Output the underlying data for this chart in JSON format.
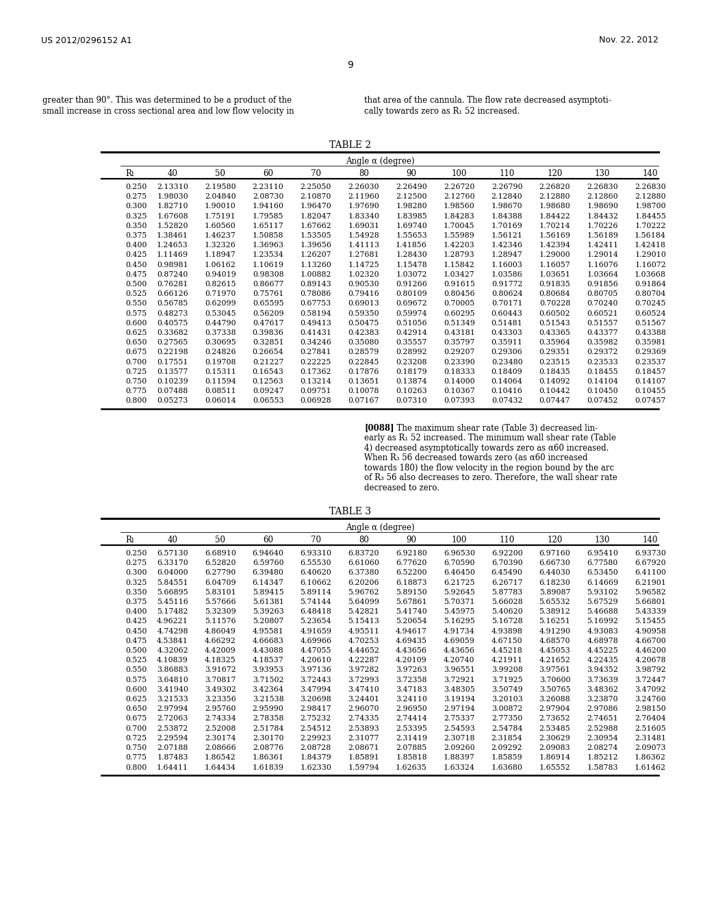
{
  "header_left": "US 2012/0296152 A1",
  "header_right": "Nov. 22, 2012",
  "page_num": "9",
  "text_left": "greater than 90°. This was determined to be a product of the\nsmall increase in cross sectional area and low flow velocity in",
  "text_right": "that area of the cannula. The flow rate decreased asymptoti-\ncally towards zero as R₁ 52 increased.",
  "table2_title": "TABLE 2",
  "table2_header_row": [
    "R₁",
    "40",
    "50",
    "60",
    "70",
    "80",
    "90",
    "100",
    "110",
    "120",
    "130",
    "140"
  ],
  "table2_angle_label": "Angle α (degree)",
  "table2_data": [
    [
      "0.250",
      "2.13310",
      "2.19580",
      "2.23110",
      "2.25050",
      "2.26030",
      "2.26490",
      "2.26720",
      "2.26790",
      "2.26820",
      "2.26830",
      "2.26830"
    ],
    [
      "0.275",
      "1.98030",
      "2.04840",
      "2.08730",
      "2.10870",
      "2.11960",
      "2.12500",
      "2.12760",
      "2.12840",
      "2.12880",
      "2.12860",
      "2.12880"
    ],
    [
      "0.300",
      "1.82710",
      "1.90010",
      "1.94160",
      "1.96470",
      "1.97690",
      "1.98280",
      "1.98560",
      "1.98670",
      "1.98680",
      "1.98690",
      "1.98700"
    ],
    [
      "0.325",
      "1.67608",
      "1.75191",
      "1.79585",
      "1.82047",
      "1.83340",
      "1.83985",
      "1.84283",
      "1.84388",
      "1.84422",
      "1.84432",
      "1.84455"
    ],
    [
      "0.350",
      "1.52820",
      "1.60560",
      "1.65117",
      "1.67662",
      "1.69031",
      "1.69740",
      "1.70045",
      "1.70169",
      "1.70214",
      "1.70226",
      "1.70222"
    ],
    [
      "0.375",
      "1.38461",
      "1.46237",
      "1.50858",
      "1.53505",
      "1.54928",
      "1.55653",
      "1.55989",
      "1.56121",
      "1.56169",
      "1.56189",
      "1.56184"
    ],
    [
      "0.400",
      "1.24653",
      "1.32326",
      "1.36963",
      "1.39656",
      "1.41113",
      "1.41856",
      "1.42203",
      "1.42346",
      "1.42394",
      "1.42411",
      "1.42418"
    ],
    [
      "0.425",
      "1.11469",
      "1.18947",
      "1.23534",
      "1.26207",
      "1.27681",
      "1.28430",
      "1.28793",
      "1.28947",
      "1.29000",
      "1.29014",
      "1.29010"
    ],
    [
      "0.450",
      "0.98981",
      "1.06162",
      "1.10619",
      "1.13260",
      "1.14725",
      "1.15478",
      "1.15842",
      "1.16003",
      "1.16057",
      "1.16076",
      "1.16072"
    ],
    [
      "0.475",
      "0.87240",
      "0.94019",
      "0.98308",
      "1.00882",
      "1.02320",
      "1.03072",
      "1.03427",
      "1.03586",
      "1.03651",
      "1.03664",
      "1.03668"
    ],
    [
      "0.500",
      "0.76281",
      "0.82615",
      "0.86677",
      "0.89143",
      "0.90530",
      "0.91266",
      "0.91615",
      "0.91772",
      "0.91835",
      "0.91856",
      "0.91864"
    ],
    [
      "0.525",
      "0.66126",
      "0.71970",
      "0.75761",
      "0.78086",
      "0.79416",
      "0.80109",
      "0.80456",
      "0.80624",
      "0.80684",
      "0.80705",
      "0.80704"
    ],
    [
      "0.550",
      "0.56785",
      "0.62099",
      "0.65595",
      "0.67753",
      "0.69013",
      "0.69672",
      "0.70005",
      "0.70171",
      "0.70228",
      "0.70240",
      "0.70245"
    ],
    [
      "0.575",
      "0.48273",
      "0.53045",
      "0.56209",
      "0.58194",
      "0.59350",
      "0.59974",
      "0.60295",
      "0.60443",
      "0.60502",
      "0.60521",
      "0.60524"
    ],
    [
      "0.600",
      "0.40575",
      "0.44790",
      "0.47617",
      "0.49413",
      "0.50475",
      "0.51056",
      "0.51349",
      "0.51481",
      "0.51543",
      "0.51557",
      "0.51567"
    ],
    [
      "0.625",
      "0.33682",
      "0.37338",
      "0.39836",
      "0.41431",
      "0.42383",
      "0.42914",
      "0.43181",
      "0.43303",
      "0.43365",
      "0.43377",
      "0.43388"
    ],
    [
      "0.650",
      "0.27565",
      "0.30695",
      "0.32851",
      "0.34246",
      "0.35080",
      "0.35557",
      "0.35797",
      "0.35911",
      "0.35964",
      "0.35982",
      "0.35981"
    ],
    [
      "0.675",
      "0.22198",
      "0.24826",
      "0.26654",
      "0.27841",
      "0.28579",
      "0.28992",
      "0.29207",
      "0.29306",
      "0.29351",
      "0.29372",
      "0.29369"
    ],
    [
      "0.700",
      "0.17551",
      "0.19708",
      "0.21227",
      "0.22225",
      "0.22845",
      "0.23208",
      "0.23390",
      "0.23480",
      "0.23515",
      "0.23533",
      "0.23537"
    ],
    [
      "0.725",
      "0.13577",
      "0.15311",
      "0.16543",
      "0.17362",
      "0.17876",
      "0.18179",
      "0.18333",
      "0.18409",
      "0.18435",
      "0.18455",
      "0.18457"
    ],
    [
      "0.750",
      "0.10239",
      "0.11594",
      "0.12563",
      "0.13214",
      "0.13651",
      "0.13874",
      "0.14000",
      "0.14064",
      "0.14092",
      "0.14104",
      "0.14107"
    ],
    [
      "0.775",
      "0.07488",
      "0.08511",
      "0.09247",
      "0.09751",
      "0.10078",
      "0.10263",
      "0.10367",
      "0.10416",
      "0.10442",
      "0.10450",
      "0.10455"
    ],
    [
      "0.800",
      "0.05273",
      "0.06014",
      "0.06553",
      "0.06928",
      "0.07167",
      "0.07310",
      "0.07393",
      "0.07432",
      "0.07447",
      "0.07452",
      "0.07457"
    ]
  ],
  "para0088": "[0088]   The maximum shear rate (Table 3) decreased lin-\nearly as R₁ 52 increased. The minimum wall shear rate (Table\n4) decreased asymptotically towards zero as α60 increased.\nWhen R₃ 56 decreased towards zero (as α60 increased\ntowards 180) the flow velocity in the region bound by the arc\nof R₃ 56 also decreases to zero. Therefore, the wall shear rate\ndecreased to zero.",
  "table3_title": "TABLE 3",
  "table3_angle_label": "Angle α (degree)",
  "table3_header_row": [
    "R₁",
    "40",
    "50",
    "60",
    "70",
    "80",
    "90",
    "100",
    "110",
    "120",
    "130",
    "140"
  ],
  "table3_data": [
    [
      "0.250",
      "6.57130",
      "6.68910",
      "6.94640",
      "6.93310",
      "6.83720",
      "6.92180",
      "6.96530",
      "6.92200",
      "6.97160",
      "6.95410",
      "6.93730"
    ],
    [
      "0.275",
      "6.33170",
      "6.52820",
      "6.59760",
      "6.55530",
      "6.61060",
      "6.77620",
      "6.70590",
      "6.70390",
      "6.66730",
      "6.77580",
      "6.67920"
    ],
    [
      "0.300",
      "6.04000",
      "6.27790",
      "6.39480",
      "6.40620",
      "6.37380",
      "6.52200",
      "6.46450",
      "6.45490",
      "6.44030",
      "6.53450",
      "6.41100"
    ],
    [
      "0.325",
      "5.84551",
      "6.04709",
      "6.14347",
      "6.10662",
      "6.20206",
      "6.18873",
      "6.21725",
      "6.26717",
      "6.18230",
      "6.14669",
      "6.21901"
    ],
    [
      "0.350",
      "5.66895",
      "5.83101",
      "5.89415",
      "5.89114",
      "5.96762",
      "5.89150",
      "5.92645",
      "5.87783",
      "5.89087",
      "5.93102",
      "5.96582"
    ],
    [
      "0.375",
      "5.45116",
      "5.57666",
      "5.61381",
      "5.74144",
      "5.64099",
      "5.67861",
      "5.70371",
      "5.66028",
      "5.65532",
      "5.67529",
      "5.66801"
    ],
    [
      "0.400",
      "5.17482",
      "5.32309",
      "5.39263",
      "6.48418",
      "5.42821",
      "5.41740",
      "5.45975",
      "5.40620",
      "5.38912",
      "5.46688",
      "5.43339"
    ],
    [
      "0.425",
      "4.96221",
      "5.11576",
      "5.20807",
      "5.23654",
      "5.15413",
      "5.20654",
      "5.16295",
      "5.16728",
      "5.16251",
      "5.16992",
      "5.15455"
    ],
    [
      "0.450",
      "4.74298",
      "4.86049",
      "4.95581",
      "4.91659",
      "4.95511",
      "4.94617",
      "4.91734",
      "4.93898",
      "4.91290",
      "4.93083",
      "4.90958"
    ],
    [
      "0.475",
      "4.53841",
      "4.66292",
      "4.66683",
      "4.69966",
      "4.70253",
      "4.69435",
      "4.69059",
      "4.67150",
      "4.68570",
      "4.68978",
      "4.66700"
    ],
    [
      "0.500",
      "4.32062",
      "4.42009",
      "4.43088",
      "4.47055",
      "4.44652",
      "4.43656",
      "4.43656",
      "4.45218",
      "4.45053",
      "4.45225",
      "4.46200"
    ],
    [
      "0.525",
      "4.10839",
      "4.18325",
      "4.18537",
      "4.20610",
      "4.22287",
      "4.20109",
      "4.20740",
      "4.21911",
      "4.21652",
      "4.22435",
      "4.20678"
    ],
    [
      "0.550",
      "3.86883",
      "3.91672",
      "3.93953",
      "3.97136",
      "3.97282",
      "3.97263",
      "3.96551",
      "3.99208",
      "3.97561",
      "3.94352",
      "3.98792"
    ],
    [
      "0.575",
      "3.64810",
      "3.70817",
      "3.71502",
      "3.72443",
      "3.72993",
      "3.72358",
      "3.72921",
      "3.71925",
      "3.70600",
      "3.73639",
      "3.72447"
    ],
    [
      "0.600",
      "3.41940",
      "3.49302",
      "3.42364",
      "3.47994",
      "3.47410",
      "3.47183",
      "3.48305",
      "3.50749",
      "3.50765",
      "3.48362",
      "3.47092"
    ],
    [
      "0.625",
      "3.21533",
      "3.23356",
      "3.21538",
      "3.20698",
      "3.24401",
      "3.24110",
      "3.19194",
      "3.20103",
      "3.26088",
      "3.23870",
      "3.24760"
    ],
    [
      "0.650",
      "2.97994",
      "2.95760",
      "2.95990",
      "2.98417",
      "2.96070",
      "2.96950",
      "2.97194",
      "3.00872",
      "2.97904",
      "2.97086",
      "2.98150"
    ],
    [
      "0.675",
      "2.72063",
      "2.74334",
      "2.78358",
      "2.75232",
      "2.74335",
      "2.74414",
      "2.75337",
      "2.77350",
      "2.73652",
      "2.74651",
      "2.76404"
    ],
    [
      "0.700",
      "2.53872",
      "2.52008",
      "2.51784",
      "2.54512",
      "2.53893",
      "2.53395",
      "2.54593",
      "2.54784",
      "2.53485",
      "2.52988",
      "2.51605"
    ],
    [
      "0.725",
      "2.29594",
      "2.30174",
      "2.30170",
      "2.29923",
      "2.31077",
      "2.31419",
      "2.30718",
      "2.31854",
      "2.30629",
      "2.30954",
      "2.31481"
    ],
    [
      "0.750",
      "2.07188",
      "2.08666",
      "2.08776",
      "2.08728",
      "2.08671",
      "2.07885",
      "2.09260",
      "2.09292",
      "2.09083",
      "2.08274",
      "2.09073"
    ],
    [
      "0.775",
      "1.87483",
      "1.86542",
      "1.86361",
      "1.84379",
      "1.85891",
      "1.85818",
      "1.88397",
      "1.85859",
      "1.86914",
      "1.85212",
      "1.86362"
    ],
    [
      "0.800",
      "1.64411",
      "1.64434",
      "1.61839",
      "1.62330",
      "1.59794",
      "1.62635",
      "1.63324",
      "1.63680",
      "1.65552",
      "1.58783",
      "1.61462"
    ]
  ]
}
